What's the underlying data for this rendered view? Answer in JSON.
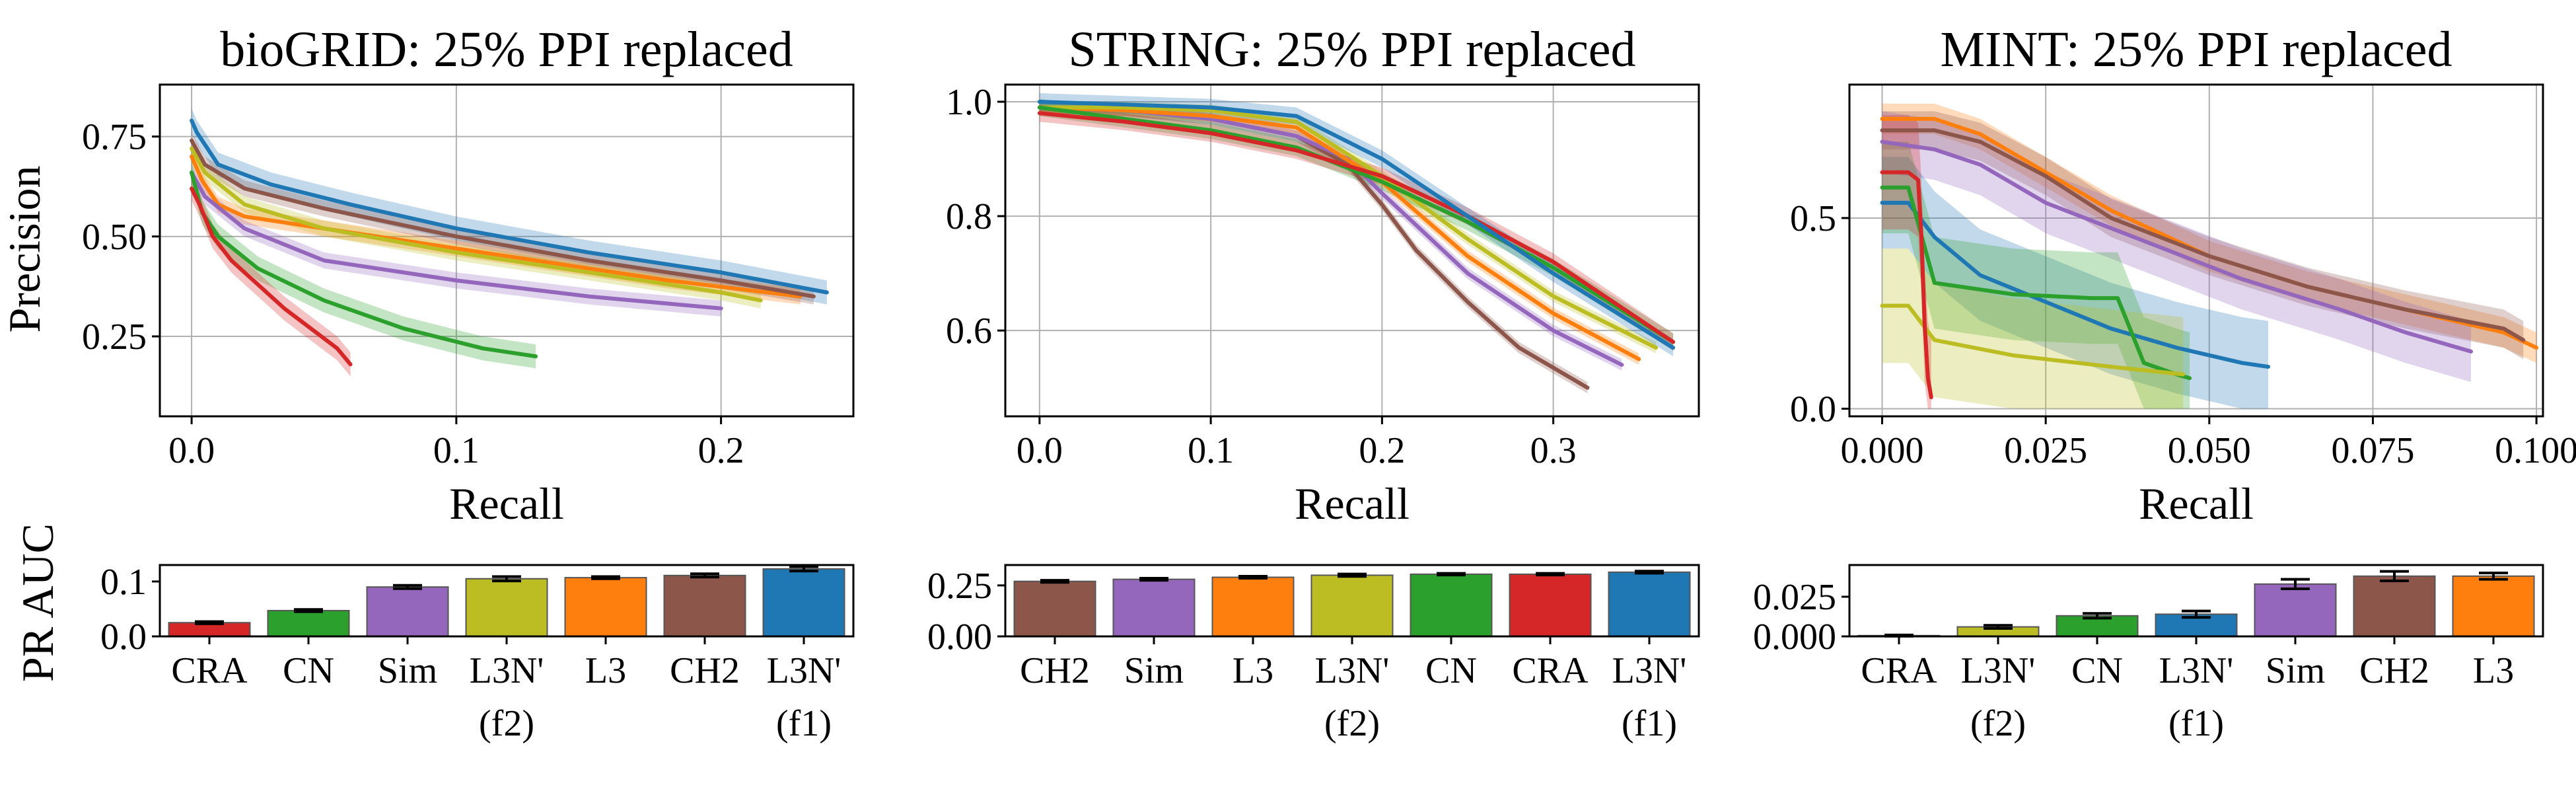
{
  "figure": {
    "ylabel_top": "Precision",
    "ylabel_bottom": "PR AUC",
    "colors": {
      "L3N' (f1)": "#1f77b4",
      "L3": "#ff7f0e",
      "CN": "#2ca02c",
      "CRA": "#d62728",
      "Sim": "#9467bd",
      "CH2": "#8c564b",
      "L3N' (f2)": "#bcbd22"
    }
  },
  "chart_data": [
    {
      "type": "line",
      "title": "bioGRID: 25% PPI replaced",
      "xlabel": "Recall",
      "ylabel": "Precision",
      "xlim": [
        -0.012,
        0.25
      ],
      "ylim": [
        0.05,
        0.88
      ],
      "xticks": [
        {
          "v": 0.0,
          "label": "0.0"
        },
        {
          "v": 0.1,
          "label": "0.1"
        },
        {
          "v": 0.2,
          "label": "0.2"
        }
      ],
      "yticks": [
        {
          "v": 0.25,
          "label": "0.25"
        },
        {
          "v": 0.5,
          "label": "0.50"
        },
        {
          "v": 0.75,
          "label": "0.75"
        }
      ],
      "grid": true,
      "series": [
        {
          "name": "L3N' (f1)",
          "color": "#1f77b4",
          "band": 0.03,
          "x": [
            0,
            0.002,
            0.01,
            0.03,
            0.06,
            0.1,
            0.15,
            0.2,
            0.24
          ],
          "y": [
            0.79,
            0.76,
            0.68,
            0.63,
            0.58,
            0.52,
            0.46,
            0.41,
            0.36
          ]
        },
        {
          "name": "L3",
          "color": "#ff7f0e",
          "band": 0.02,
          "x": [
            0,
            0.004,
            0.01,
            0.02,
            0.04,
            0.08,
            0.13,
            0.18,
            0.23
          ],
          "y": [
            0.7,
            0.64,
            0.58,
            0.55,
            0.53,
            0.49,
            0.44,
            0.39,
            0.35
          ]
        },
        {
          "name": "CH2",
          "color": "#8c564b",
          "band": 0.02,
          "x": [
            0,
            0.005,
            0.02,
            0.05,
            0.1,
            0.15,
            0.2,
            0.235
          ],
          "y": [
            0.74,
            0.68,
            0.62,
            0.57,
            0.5,
            0.44,
            0.39,
            0.35
          ]
        },
        {
          "name": "L3N' (f2)",
          "color": "#bcbd22",
          "band": 0.02,
          "x": [
            0,
            0.005,
            0.02,
            0.05,
            0.1,
            0.15,
            0.2,
            0.215
          ],
          "y": [
            0.72,
            0.66,
            0.58,
            0.52,
            0.46,
            0.41,
            0.36,
            0.34
          ]
        },
        {
          "name": "Sim",
          "color": "#9467bd",
          "band": 0.02,
          "x": [
            0,
            0.005,
            0.02,
            0.05,
            0.1,
            0.15,
            0.2
          ],
          "y": [
            0.66,
            0.6,
            0.52,
            0.44,
            0.39,
            0.35,
            0.32
          ]
        },
        {
          "name": "CN",
          "color": "#2ca02c",
          "band": 0.03,
          "x": [
            0,
            0.004,
            0.01,
            0.025,
            0.05,
            0.08,
            0.11,
            0.13
          ],
          "y": [
            0.66,
            0.56,
            0.5,
            0.42,
            0.34,
            0.27,
            0.22,
            0.2
          ]
        },
        {
          "name": "CRA",
          "color": "#d62728",
          "band": 0.03,
          "x": [
            0,
            0.003,
            0.008,
            0.015,
            0.025,
            0.035,
            0.045,
            0.055,
            0.06
          ],
          "y": [
            0.62,
            0.58,
            0.5,
            0.44,
            0.38,
            0.32,
            0.27,
            0.22,
            0.18
          ]
        }
      ]
    },
    {
      "type": "line",
      "title": "STRING: 25% PPI replaced",
      "xlabel": "Recall",
      "ylabel": "",
      "xlim": [
        -0.02,
        0.385
      ],
      "ylim": [
        0.45,
        1.03
      ],
      "xticks": [
        {
          "v": 0.0,
          "label": "0.0"
        },
        {
          "v": 0.1,
          "label": "0.1"
        },
        {
          "v": 0.2,
          "label": "0.2"
        },
        {
          "v": 0.3,
          "label": "0.3"
        }
      ],
      "yticks": [
        {
          "v": 0.6,
          "label": "0.6"
        },
        {
          "v": 0.8,
          "label": "0.8"
        },
        {
          "v": 1.0,
          "label": "1.0"
        }
      ],
      "grid": true,
      "series": [
        {
          "name": "CH2",
          "color": "#8c564b",
          "band": 0.01,
          "x": [
            0,
            0.05,
            0.1,
            0.15,
            0.18,
            0.2,
            0.22,
            0.25,
            0.28,
            0.32
          ],
          "y": [
            0.99,
            0.985,
            0.97,
            0.94,
            0.89,
            0.82,
            0.74,
            0.65,
            0.57,
            0.5
          ]
        },
        {
          "name": "Sim",
          "color": "#9467bd",
          "band": 0.01,
          "x": [
            0,
            0.05,
            0.1,
            0.15,
            0.18,
            0.2,
            0.25,
            0.3,
            0.34
          ],
          "y": [
            0.99,
            0.985,
            0.97,
            0.94,
            0.9,
            0.84,
            0.7,
            0.6,
            0.54
          ]
        },
        {
          "name": "L3",
          "color": "#ff7f0e",
          "band": 0.01,
          "x": [
            0,
            0.05,
            0.1,
            0.15,
            0.2,
            0.25,
            0.3,
            0.35
          ],
          "y": [
            0.99,
            0.985,
            0.975,
            0.955,
            0.86,
            0.73,
            0.63,
            0.55
          ]
        },
        {
          "name": "L3N' (f2)",
          "color": "#bcbd22",
          "band": 0.01,
          "x": [
            0,
            0.05,
            0.1,
            0.15,
            0.2,
            0.25,
            0.3,
            0.36
          ],
          "y": [
            0.99,
            0.99,
            0.985,
            0.965,
            0.87,
            0.76,
            0.66,
            0.57
          ]
        },
        {
          "name": "CN",
          "color": "#2ca02c",
          "band": 0.015,
          "x": [
            0,
            0.05,
            0.1,
            0.15,
            0.2,
            0.25,
            0.3,
            0.37
          ],
          "y": [
            0.99,
            0.97,
            0.95,
            0.92,
            0.86,
            0.79,
            0.71,
            0.58
          ]
        },
        {
          "name": "CRA",
          "color": "#d62728",
          "band": 0.015,
          "x": [
            0,
            0.05,
            0.1,
            0.15,
            0.2,
            0.25,
            0.3,
            0.37
          ],
          "y": [
            0.98,
            0.965,
            0.945,
            0.915,
            0.87,
            0.8,
            0.72,
            0.58
          ]
        },
        {
          "name": "L3N' (f1)",
          "color": "#1f77b4",
          "band": 0.015,
          "x": [
            0,
            0.05,
            0.1,
            0.15,
            0.2,
            0.25,
            0.3,
            0.37
          ],
          "y": [
            1.0,
            0.995,
            0.99,
            0.975,
            0.9,
            0.8,
            0.7,
            0.57
          ]
        }
      ]
    },
    {
      "type": "line",
      "title": "MINT: 25% PPI replaced",
      "xlabel": "Recall",
      "ylabel": "",
      "xlim": [
        -0.005,
        0.101
      ],
      "ylim": [
        -0.02,
        0.85
      ],
      "xticks": [
        {
          "v": 0.0,
          "label": "0.000"
        },
        {
          "v": 0.025,
          "label": "0.025"
        },
        {
          "v": 0.05,
          "label": "0.050"
        },
        {
          "v": 0.075,
          "label": "0.075"
        },
        {
          "v": 0.1,
          "label": "0.100"
        }
      ],
      "yticks": [
        {
          "v": 0.0,
          "label": "0.0"
        },
        {
          "v": 0.5,
          "label": "0.5"
        }
      ],
      "grid": true,
      "series": [
        {
          "name": "L3",
          "color": "#ff7f0e",
          "band": 0.04,
          "x": [
            0,
            0.008,
            0.015,
            0.025,
            0.035,
            0.05,
            0.065,
            0.08,
            0.095,
            0.1
          ],
          "y": [
            0.76,
            0.76,
            0.72,
            0.62,
            0.52,
            0.4,
            0.32,
            0.26,
            0.2,
            0.16
          ]
        },
        {
          "name": "CH2",
          "color": "#8c564b",
          "band": 0.05,
          "x": [
            0,
            0.008,
            0.015,
            0.025,
            0.035,
            0.05,
            0.065,
            0.08,
            0.095,
            0.098
          ],
          "y": [
            0.73,
            0.73,
            0.7,
            0.61,
            0.5,
            0.4,
            0.32,
            0.26,
            0.21,
            0.18
          ]
        },
        {
          "name": "Sim",
          "color": "#9467bd",
          "band": 0.08,
          "x": [
            0,
            0.008,
            0.015,
            0.025,
            0.04,
            0.055,
            0.07,
            0.08,
            0.09
          ],
          "y": [
            0.7,
            0.68,
            0.64,
            0.54,
            0.44,
            0.34,
            0.26,
            0.2,
            0.15
          ]
        },
        {
          "name": "L3N' (f1)",
          "color": "#1f77b4",
          "band": 0.12,
          "x": [
            0,
            0.004,
            0.008,
            0.015,
            0.025,
            0.035,
            0.045,
            0.055,
            0.059
          ],
          "y": [
            0.54,
            0.54,
            0.45,
            0.35,
            0.28,
            0.21,
            0.16,
            0.12,
            0.11
          ]
        },
        {
          "name": "CN",
          "color": "#2ca02c",
          "band": 0.12,
          "x": [
            0,
            0.004,
            0.008,
            0.02,
            0.032,
            0.036,
            0.04,
            0.045,
            0.047
          ],
          "y": [
            0.58,
            0.58,
            0.33,
            0.3,
            0.29,
            0.29,
            0.12,
            0.09,
            0.08
          ]
        },
        {
          "name": "L3N' (f2)",
          "color": "#bcbd22",
          "band": 0.15,
          "x": [
            0,
            0.004,
            0.008,
            0.02,
            0.035,
            0.046
          ],
          "y": [
            0.27,
            0.27,
            0.18,
            0.14,
            0.11,
            0.09
          ]
        },
        {
          "name": "CRA",
          "color": "#d62728",
          "band": 0.15,
          "x": [
            0,
            0.004,
            0.0055,
            0.006,
            0.0065,
            0.007,
            0.0075
          ],
          "y": [
            0.62,
            0.62,
            0.6,
            0.45,
            0.22,
            0.08,
            0.03
          ]
        }
      ]
    },
    {
      "type": "bar",
      "title": "",
      "xlabel": "",
      "ylabel": "PR AUC",
      "ylim": [
        0,
        0.13
      ],
      "yticks": [
        {
          "v": 0.0,
          "label": "0.0"
        },
        {
          "v": 0.1,
          "label": "0.1"
        }
      ],
      "categories": [
        "CRA",
        "CN",
        "Sim",
        "L3N'",
        "L3",
        "CH2",
        "L3N'"
      ],
      "sublabels": [
        "",
        "",
        "",
        "(f2)",
        "",
        "",
        "(f1)"
      ],
      "values": [
        0.025,
        0.047,
        0.09,
        0.105,
        0.107,
        0.111,
        0.123
      ],
      "errors": [
        0.002,
        0.002,
        0.003,
        0.004,
        0.002,
        0.003,
        0.004
      ],
      "colors": [
        "#d62728",
        "#2ca02c",
        "#9467bd",
        "#bcbd22",
        "#ff7f0e",
        "#8c564b",
        "#1f77b4"
      ]
    },
    {
      "type": "bar",
      "title": "",
      "xlabel": "",
      "ylabel": "",
      "ylim": [
        0,
        0.35
      ],
      "yticks": [
        {
          "v": 0.0,
          "label": "0.00"
        },
        {
          "v": 0.25,
          "label": "0.25"
        }
      ],
      "categories": [
        "CH2",
        "Sim",
        "L3",
        "L3N'",
        "CN",
        "CRA",
        "L3N'"
      ],
      "sublabels": [
        "",
        "",
        "",
        "(f2)",
        "",
        "",
        "(f1)"
      ],
      "values": [
        0.27,
        0.28,
        0.29,
        0.3,
        0.305,
        0.305,
        0.315
      ],
      "errors": [
        0.005,
        0.005,
        0.005,
        0.006,
        0.004,
        0.004,
        0.005
      ],
      "colors": [
        "#8c564b",
        "#9467bd",
        "#ff7f0e",
        "#bcbd22",
        "#2ca02c",
        "#d62728",
        "#1f77b4"
      ]
    },
    {
      "type": "bar",
      "title": "",
      "xlabel": "",
      "ylabel": "",
      "ylim": [
        0,
        0.045
      ],
      "yticks": [
        {
          "v": 0.0,
          "label": "0.000"
        },
        {
          "v": 0.025,
          "label": "0.025"
        }
      ],
      "categories": [
        "CRA",
        "L3N'",
        "CN",
        "L3N'",
        "Sim",
        "CH2",
        "L3"
      ],
      "sublabels": [
        "",
        "(f2)",
        "",
        "(f1)",
        "",
        "",
        ""
      ],
      "values": [
        0.0005,
        0.006,
        0.013,
        0.014,
        0.033,
        0.038,
        0.038
      ],
      "errors": [
        0.0004,
        0.001,
        0.0015,
        0.002,
        0.003,
        0.003,
        0.002
      ],
      "colors": [
        "#d62728",
        "#bcbd22",
        "#2ca02c",
        "#1f77b4",
        "#9467bd",
        "#8c564b",
        "#ff7f0e"
      ]
    }
  ]
}
